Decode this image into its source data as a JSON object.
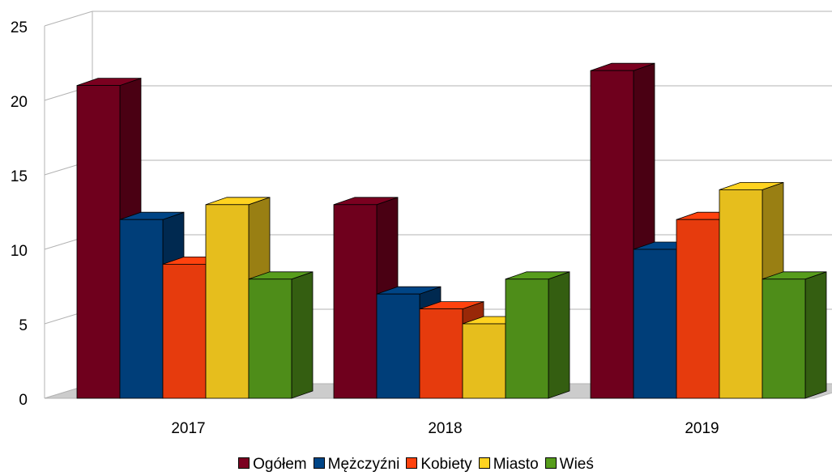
{
  "chart_data": {
    "type": "bar",
    "title": "",
    "xlabel": "",
    "ylabel": "",
    "categories": [
      "2017",
      "2018",
      "2019"
    ],
    "ylim": [
      0,
      25
    ],
    "yticks": [
      "0",
      "5",
      "10",
      "15",
      "20",
      "25"
    ],
    "grid": true,
    "legend_position": "bottom",
    "style": "3d-clustered",
    "series": [
      {
        "name": "Ogółem",
        "values": [
          21,
          13,
          22
        ],
        "color": "#7b0020"
      },
      {
        "name": "Mężczyźni",
        "values": [
          12,
          7,
          10
        ],
        "color": "#004586"
      },
      {
        "name": "Kobiety",
        "values": [
          9,
          6,
          12
        ],
        "color": "#ff420e"
      },
      {
        "name": "Miasto",
        "values": [
          13,
          5,
          14
        ],
        "color": "#ffd320"
      },
      {
        "name": "Wieś",
        "values": [
          8,
          8,
          8
        ],
        "color": "#579d1c"
      }
    ]
  }
}
